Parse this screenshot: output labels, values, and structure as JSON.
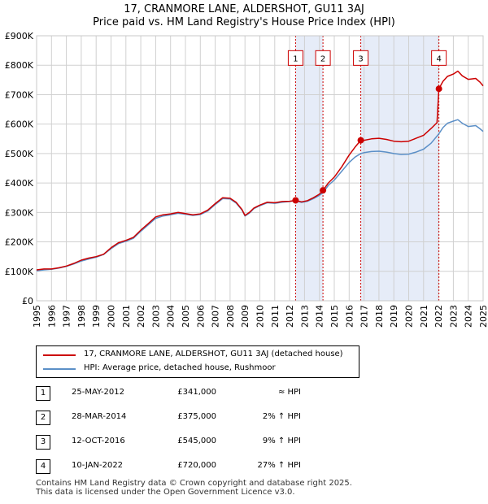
{
  "chart_data": {
    "type": "line",
    "title": "17, CRANMORE LANE, ALDERSHOT, GU11 3AJ",
    "subtitle": "Price paid vs. HM Land Registry's House Price Index (HPI)",
    "xlim": [
      1995.0,
      2025.0
    ],
    "ylim": [
      0,
      900000
    ],
    "x_ticks": [
      "1995",
      "1996",
      "1997",
      "1998",
      "1999",
      "2000",
      "2001",
      "2002",
      "2003",
      "2004",
      "2005",
      "2006",
      "2007",
      "2008",
      "2009",
      "2010",
      "2011",
      "2012",
      "2013",
      "2014",
      "2015",
      "2016",
      "2017",
      "2018",
      "2019",
      "2020",
      "2021",
      "2022",
      "2023",
      "2024",
      "2025"
    ],
    "y_ticks": [
      {
        "value": 0,
        "label": "£0"
      },
      {
        "value": 100000,
        "label": "£100K"
      },
      {
        "value": 200000,
        "label": "£200K"
      },
      {
        "value": 300000,
        "label": "£300K"
      },
      {
        "value": 400000,
        "label": "£400K"
      },
      {
        "value": 500000,
        "label": "£500K"
      },
      {
        "value": 600000,
        "label": "£600K"
      },
      {
        "value": 700000,
        "label": "£700K"
      },
      {
        "value": 800000,
        "label": "£800K"
      },
      {
        "value": 900000,
        "label": "£900K"
      }
    ],
    "grid": true,
    "shaded_regions": [
      [
        2012.4,
        2014.24
      ],
      [
        2016.78,
        2022.03
      ]
    ],
    "series": [
      {
        "name": "17, CRANMORE LANE, ALDERSHOT, GU11 3AJ (detached house)",
        "color": "#cc0000",
        "points": [
          [
            1995.0,
            105000
          ],
          [
            1995.5,
            108000
          ],
          [
            1996.0,
            108000
          ],
          [
            1996.5,
            112000
          ],
          [
            1997.0,
            118000
          ],
          [
            1997.5,
            127000
          ],
          [
            1998.0,
            138000
          ],
          [
            1998.5,
            145000
          ],
          [
            1999.0,
            150000
          ],
          [
            1999.5,
            158000
          ],
          [
            2000.0,
            180000
          ],
          [
            2000.5,
            197000
          ],
          [
            2001.0,
            205000
          ],
          [
            2001.5,
            215000
          ],
          [
            2002.0,
            240000
          ],
          [
            2002.5,
            262000
          ],
          [
            2003.0,
            285000
          ],
          [
            2003.5,
            292000
          ],
          [
            2004.0,
            295000
          ],
          [
            2004.5,
            300000
          ],
          [
            2005.0,
            296000
          ],
          [
            2005.5,
            292000
          ],
          [
            2006.0,
            295000
          ],
          [
            2006.5,
            308000
          ],
          [
            2007.0,
            330000
          ],
          [
            2007.5,
            350000
          ],
          [
            2008.0,
            348000
          ],
          [
            2008.4,
            335000
          ],
          [
            2008.8,
            310000
          ],
          [
            2009.0,
            290000
          ],
          [
            2009.3,
            300000
          ],
          [
            2009.6,
            315000
          ],
          [
            2010.0,
            325000
          ],
          [
            2010.5,
            335000
          ],
          [
            2011.0,
            333000
          ],
          [
            2011.5,
            337000
          ],
          [
            2012.0,
            338000
          ],
          [
            2012.4,
            341000
          ],
          [
            2012.8,
            336000
          ],
          [
            2013.2,
            340000
          ],
          [
            2013.6,
            350000
          ],
          [
            2014.0,
            362000
          ],
          [
            2014.24,
            375000
          ],
          [
            2014.6,
            400000
          ],
          [
            2015.0,
            420000
          ],
          [
            2015.5,
            455000
          ],
          [
            2016.0,
            495000
          ],
          [
            2016.4,
            522000
          ],
          [
            2016.78,
            545000
          ],
          [
            2017.0,
            545000
          ],
          [
            2017.5,
            550000
          ],
          [
            2018.0,
            552000
          ],
          [
            2018.5,
            548000
          ],
          [
            2019.0,
            542000
          ],
          [
            2019.5,
            540000
          ],
          [
            2020.0,
            542000
          ],
          [
            2020.5,
            552000
          ],
          [
            2021.0,
            562000
          ],
          [
            2021.5,
            585000
          ],
          [
            2021.9,
            605000
          ],
          [
            2022.03,
            720000
          ],
          [
            2022.3,
            745000
          ],
          [
            2022.6,
            762000
          ],
          [
            2023.0,
            770000
          ],
          [
            2023.3,
            780000
          ],
          [
            2023.6,
            764000
          ],
          [
            2024.0,
            752000
          ],
          [
            2024.5,
            755000
          ],
          [
            2024.8,
            742000
          ],
          [
            2025.0,
            730000
          ]
        ]
      },
      {
        "name": "HPI: Average price, detached house, Rushmoor",
        "color": "#5b8fc7",
        "points": [
          [
            1995.0,
            102000
          ],
          [
            1995.5,
            105000
          ],
          [
            1996.0,
            107000
          ],
          [
            1996.5,
            111000
          ],
          [
            1997.0,
            117000
          ],
          [
            1997.5,
            125000
          ],
          [
            1998.0,
            135000
          ],
          [
            1998.5,
            142000
          ],
          [
            1999.0,
            148000
          ],
          [
            1999.5,
            157000
          ],
          [
            2000.0,
            177000
          ],
          [
            2000.5,
            194000
          ],
          [
            2001.0,
            202000
          ],
          [
            2001.5,
            212000
          ],
          [
            2002.0,
            236000
          ],
          [
            2002.5,
            258000
          ],
          [
            2003.0,
            280000
          ],
          [
            2003.5,
            288000
          ],
          [
            2004.0,
            292000
          ],
          [
            2004.5,
            297000
          ],
          [
            2005.0,
            294000
          ],
          [
            2005.5,
            290000
          ],
          [
            2006.0,
            293000
          ],
          [
            2006.5,
            305000
          ],
          [
            2007.0,
            327000
          ],
          [
            2007.5,
            347000
          ],
          [
            2008.0,
            346000
          ],
          [
            2008.4,
            332000
          ],
          [
            2008.8,
            308000
          ],
          [
            2009.0,
            288000
          ],
          [
            2009.3,
            298000
          ],
          [
            2009.6,
            313000
          ],
          [
            2010.0,
            323000
          ],
          [
            2010.5,
            333000
          ],
          [
            2011.0,
            331000
          ],
          [
            2011.5,
            335000
          ],
          [
            2012.0,
            337000
          ],
          [
            2012.4,
            340000
          ],
          [
            2012.8,
            334000
          ],
          [
            2013.2,
            338000
          ],
          [
            2013.6,
            347000
          ],
          [
            2014.0,
            358000
          ],
          [
            2014.24,
            367000
          ],
          [
            2014.6,
            392000
          ],
          [
            2015.0,
            410000
          ],
          [
            2015.5,
            440000
          ],
          [
            2016.0,
            470000
          ],
          [
            2016.4,
            488000
          ],
          [
            2016.78,
            500000
          ],
          [
            2017.0,
            503000
          ],
          [
            2017.5,
            507000
          ],
          [
            2018.0,
            508000
          ],
          [
            2018.5,
            505000
          ],
          [
            2019.0,
            500000
          ],
          [
            2019.5,
            497000
          ],
          [
            2020.0,
            498000
          ],
          [
            2020.5,
            505000
          ],
          [
            2021.0,
            515000
          ],
          [
            2021.5,
            535000
          ],
          [
            2022.03,
            567000
          ],
          [
            2022.3,
            588000
          ],
          [
            2022.6,
            603000
          ],
          [
            2023.0,
            610000
          ],
          [
            2023.3,
            615000
          ],
          [
            2023.6,
            603000
          ],
          [
            2024.0,
            592000
          ],
          [
            2024.5,
            595000
          ],
          [
            2024.8,
            584000
          ],
          [
            2025.0,
            575000
          ]
        ]
      }
    ],
    "markers": [
      {
        "label": "1",
        "x": 2012.4,
        "y": 341000
      },
      {
        "label": "2",
        "x": 2014.24,
        "y": 375000
      },
      {
        "label": "3",
        "x": 2016.78,
        "y": 545000
      },
      {
        "label": "4",
        "x": 2022.03,
        "y": 720000
      }
    ],
    "marker_box_value": 830000
  },
  "legend": {
    "property_label": "17, CRANMORE LANE, ALDERSHOT, GU11 3AJ (detached house)",
    "hpi_label": "HPI: Average price, detached house, Rushmoor",
    "property_color": "#cc0000",
    "hpi_color": "#5b8fc7"
  },
  "sales": [
    {
      "num": "1",
      "date": "25-MAY-2012",
      "price": "£341,000",
      "hpi": "≈ HPI"
    },
    {
      "num": "2",
      "date": "28-MAR-2014",
      "price": "£375,000",
      "hpi": "2% ↑ HPI"
    },
    {
      "num": "3",
      "date": "12-OCT-2016",
      "price": "£545,000",
      "hpi": "9% ↑ HPI"
    },
    {
      "num": "4",
      "date": "10-JAN-2022",
      "price": "£720,000",
      "hpi": "27% ↑ HPI"
    }
  ],
  "footer": {
    "line1": "Contains HM Land Registry data © Crown copyright and database right 2025.",
    "line2": "This data is licensed under the Open Government Licence v3.0."
  }
}
